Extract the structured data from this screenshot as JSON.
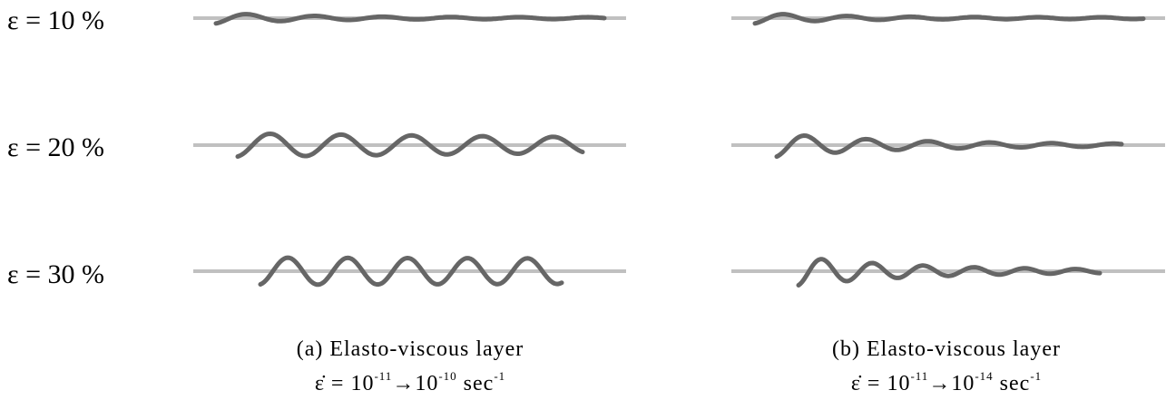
{
  "rows": [
    {
      "label": "ε = 10 %"
    },
    {
      "label": "ε = 20 %"
    },
    {
      "label": "ε = 30 %"
    }
  ],
  "panels": [
    {
      "title": "(a) Elasto-viscous layer",
      "rate": {
        "symbol": "ε̇ =",
        "base1": "10",
        "exp1": "-11",
        "arrow": "→",
        "base2": "10",
        "exp2": "-10",
        "unit": "sec",
        "unit_exp": "-1"
      }
    },
    {
      "title": "(b) Elasto-viscous layer",
      "rate": {
        "symbol": "ε̇ =",
        "base1": "10",
        "exp1": "-11",
        "arrow": "→",
        "base2": "10",
        "exp2": "-14",
        "unit": "sec",
        "unit_exp": "-1"
      }
    }
  ]
}
